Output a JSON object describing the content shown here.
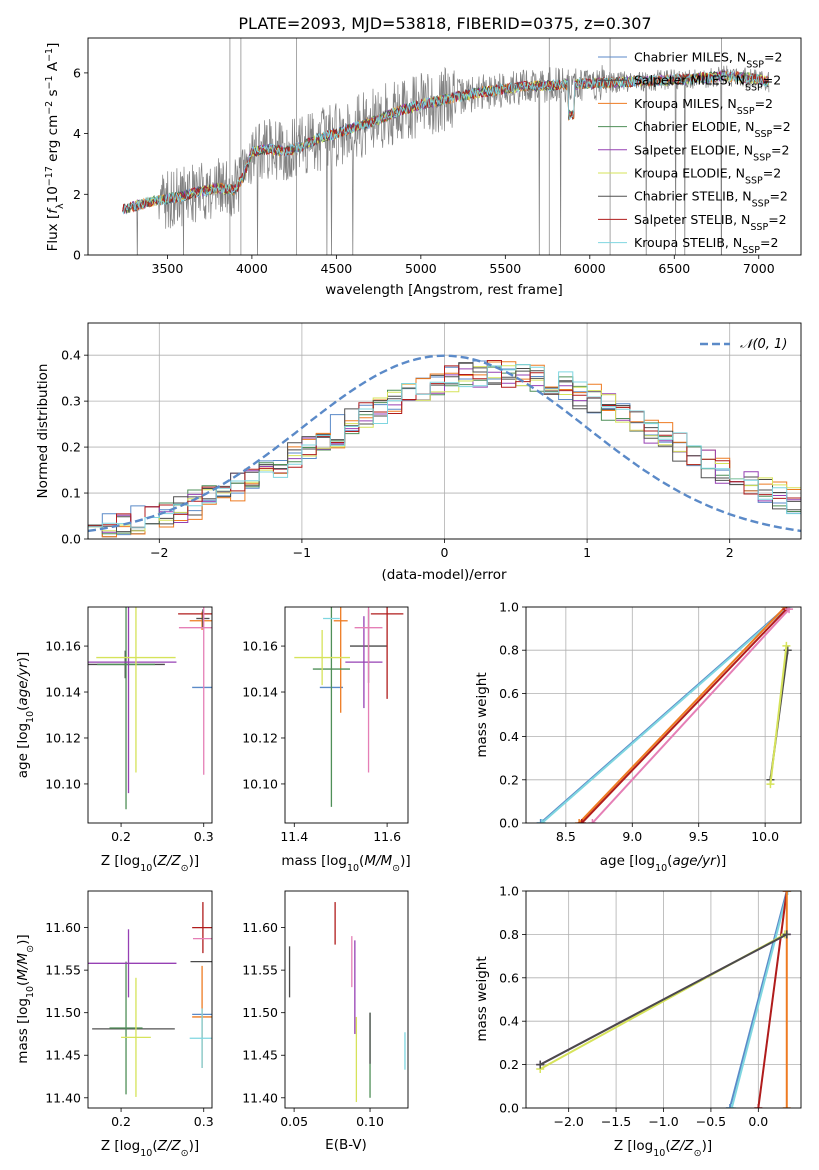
{
  "title": "PLATE=2093, MJD=53818, FIBERID=0375, z=0.307",
  "legend_ssp": [
    {
      "pre": "Chabrier MILES, N",
      "sub": "SSP",
      "post": "=2",
      "color": "#5b8ac8"
    },
    {
      "pre": "Salpeter MILES, N",
      "sub": "SSP",
      "post": "=2",
      "color": "#4b4b4b"
    },
    {
      "pre": "Kroupa MILES, N",
      "sub": "SSP",
      "post": "=2",
      "color": "#ee7b22"
    },
    {
      "pre": "Chabrier ELODIE, N",
      "sub": "SSP",
      "post": "=2",
      "color": "#4f8f58"
    },
    {
      "pre": "Salpeter ELODIE, N",
      "sub": "SSP",
      "post": "=2",
      "color": "#9640b4"
    },
    {
      "pre": "Kroupa ELODIE, N",
      "sub": "SSP",
      "post": "=2",
      "color": "#d6e35a"
    },
    {
      "pre": "Chabrier STELIB, N",
      "sub": "SSP",
      "post": "=2",
      "color": "#505050"
    },
    {
      "pre": "Salpeter STELIB, N",
      "sub": "SSP",
      "post": "=2",
      "color": "#b01c1c"
    },
    {
      "pre": "Kroupa STELIB, N",
      "sub": "SSP",
      "post": "=2",
      "color": "#7fd6e0"
    }
  ],
  "legend_normal": "𝒩(0, 1)",
  "chart_data": [
    {
      "id": "spectrum",
      "type": "line",
      "xlabel": "wavelength [Angstrom, rest frame]",
      "ylabel": "Flux [f_λ 10^-17 erg cm^-2 s^-1 A^-1]",
      "xlim": [
        3030,
        7250
      ],
      "ylim": [
        0,
        7.15
      ],
      "xticks": [
        3500,
        4000,
        4500,
        5000,
        5500,
        6000,
        6500,
        7000
      ],
      "yticks": [
        0,
        2,
        4,
        6
      ],
      "data_color": "#808080",
      "continuum": {
        "x": [
          3230,
          3300,
          3400,
          3500,
          3600,
          3700,
          3800,
          3900,
          3950,
          4000,
          4100,
          4200,
          4300,
          4400,
          4500,
          4600,
          4700,
          4800,
          4900,
          5000,
          5200,
          5400,
          5600,
          5800,
          6000,
          6200,
          6400,
          6600,
          6800,
          7000,
          7050
        ],
        "y": [
          1.5,
          1.6,
          1.75,
          1.85,
          1.95,
          2.1,
          2.2,
          2.15,
          2.6,
          3.4,
          3.5,
          3.4,
          3.6,
          3.85,
          4.0,
          4.2,
          4.35,
          4.6,
          4.8,
          4.95,
          5.2,
          5.4,
          5.55,
          5.6,
          5.65,
          5.7,
          5.75,
          5.8,
          5.9,
          5.8,
          5.7
        ]
      }
    },
    {
      "id": "residuals",
      "type": "histogram",
      "xlabel": "(data-model)/error",
      "ylabel": "Normed distribution",
      "xlim": [
        -2.5,
        2.5
      ],
      "ylim": [
        0,
        0.47
      ],
      "xticks": [
        -2,
        -1,
        0,
        1,
        2
      ],
      "yticks": [
        0.0,
        0.1,
        0.2,
        0.3,
        0.4
      ],
      "normal_curve": {
        "mean": 0,
        "sigma": 1,
        "color": "#5b8ac8"
      }
    },
    {
      "id": "age-vs-Z",
      "type": "errorbar",
      "xlabel": "Z [log10(Z/Z⊙)]",
      "ylabel": "age [log10(age/yr)]",
      "xlim": [
        0.16,
        0.31
      ],
      "ylim": [
        10.083,
        10.177
      ],
      "xticks": [
        0.2,
        0.3
      ],
      "yticks": [
        10.1,
        10.12,
        10.14,
        10.16
      ],
      "points": [
        {
          "x": 0.298,
          "y": 10.142,
          "xerr": 0.012,
          "yerr": 0.0,
          "color": "#5b8ac8"
        },
        {
          "x": 0.205,
          "y": 10.152,
          "xerr": 0.048,
          "yerr": 0.006,
          "color": "#4b4b4b"
        },
        {
          "x": 0.298,
          "y": 10.171,
          "xerr": 0.015,
          "yerr": 0.004,
          "color": "#ee7b22"
        },
        {
          "x": 0.206,
          "y": 10.152,
          "xerr": 0.035,
          "yerr": 0.063,
          "color": "#4f8f58"
        },
        {
          "x": 0.209,
          "y": 10.153,
          "xerr": 0.058,
          "yerr": 0.057,
          "color": "#9640b4"
        },
        {
          "x": 0.218,
          "y": 10.155,
          "xerr": 0.048,
          "yerr": 0.05,
          "color": "#d6e35a"
        },
        {
          "x": 0.299,
          "y": 10.172,
          "xerr": 0.008,
          "yerr": 0.004,
          "color": "#505050"
        },
        {
          "x": 0.299,
          "y": 10.174,
          "xerr": 0.03,
          "yerr": 0.0,
          "color": "#b01c1c"
        },
        {
          "x": 0.3,
          "y": 10.168,
          "xerr": 0.03,
          "yerr": 0.064,
          "color": "#e57fb6"
        }
      ]
    },
    {
      "id": "age-vs-mass",
      "type": "errorbar",
      "xlabel": "mass [log10(M/M⊙)]",
      "ylabel": "",
      "xlim": [
        11.38,
        11.645
      ],
      "ylim": [
        10.083,
        10.177
      ],
      "xticks": [
        11.4,
        11.6
      ],
      "yticks": [
        10.1,
        10.12,
        10.14,
        10.16
      ],
      "points": [
        {
          "x": 11.48,
          "y": 10.142,
          "xerr": 0.025,
          "yerr": 0.0,
          "color": "#5b8ac8"
        },
        {
          "x": 11.56,
          "y": 10.16,
          "xerr": 0.04,
          "yerr": 0.016,
          "color": "#4b4b4b"
        },
        {
          "x": 11.5,
          "y": 10.171,
          "xerr": 0.015,
          "yerr": 0.04,
          "color": "#ee7b22"
        },
        {
          "x": 11.48,
          "y": 10.15,
          "xerr": 0.04,
          "yerr": 0.06,
          "color": "#4f8f58"
        },
        {
          "x": 11.55,
          "y": 10.153,
          "xerr": 0.04,
          "yerr": 0.02,
          "color": "#9640b4"
        },
        {
          "x": 11.46,
          "y": 10.155,
          "xerr": 0.06,
          "yerr": 0.012,
          "color": "#d6e35a"
        },
        {
          "x": 11.48,
          "y": 10.172,
          "xerr": 0.018,
          "yerr": 0.0,
          "color": "#7fd6e0"
        },
        {
          "x": 11.6,
          "y": 10.174,
          "xerr": 0.035,
          "yerr": 0.037,
          "color": "#b01c1c"
        },
        {
          "x": 11.56,
          "y": 10.168,
          "xerr": 0.03,
          "yerr": 0.063,
          "color": "#e57fb6"
        }
      ]
    },
    {
      "id": "weight-vs-age",
      "type": "line",
      "xlabel": "age [log10(age/yr)]",
      "ylabel": "mass weight",
      "xlim": [
        8.2,
        10.27
      ],
      "ylim": [
        0,
        1
      ],
      "xticks": [
        8.5,
        9.0,
        9.5,
        10.0
      ],
      "yticks": [
        0.0,
        0.2,
        0.4,
        0.6,
        0.8,
        1.0
      ],
      "series": [
        {
          "x": [
            8.31,
            10.16
          ],
          "y": [
            0.0,
            1.0
          ],
          "color": "#5b8ac8"
        },
        {
          "x": [
            8.32,
            10.17
          ],
          "y": [
            0.0,
            1.0
          ],
          "color": "#7fd6e0"
        },
        {
          "x": [
            8.6,
            10.15
          ],
          "y": [
            0.0,
            1.0
          ],
          "color": "#ee7b22"
        },
        {
          "x": [
            8.62,
            10.16
          ],
          "y": [
            0.0,
            0.99
          ],
          "color": "#b01c1c"
        },
        {
          "x": [
            8.7,
            10.18
          ],
          "y": [
            0.0,
            0.99
          ],
          "color": "#e57fb6"
        },
        {
          "x": [
            10.04,
            10.17
          ],
          "y": [
            0.2,
            0.8
          ],
          "color": "#4b4b4b"
        },
        {
          "x": [
            10.04,
            10.16
          ],
          "y": [
            0.18,
            0.82
          ],
          "color": "#d6e35a"
        }
      ]
    },
    {
      "id": "mass-vs-Z",
      "type": "errorbar",
      "xlabel": "Z [log10(Z/Z⊙)]",
      "ylabel": "mass [log10(M/M⊙)]",
      "xlim": [
        0.16,
        0.31
      ],
      "ylim": [
        11.388,
        11.643
      ],
      "xticks": [
        0.2,
        0.3
      ],
      "yticks": [
        11.4,
        11.45,
        11.5,
        11.55,
        11.6
      ],
      "points": [
        {
          "x": 0.298,
          "y": 11.498,
          "xerr": 0.012,
          "yerr": 0.0,
          "color": "#5b8ac8"
        },
        {
          "x": 0.215,
          "y": 11.481,
          "xerr": 0.05,
          "yerr": 0.0,
          "color": "#505050"
        },
        {
          "x": 0.298,
          "y": 11.495,
          "xerr": 0.012,
          "yerr": 0.06,
          "color": "#ee7b22"
        },
        {
          "x": 0.206,
          "y": 11.482,
          "xerr": 0.02,
          "yerr": 0.078,
          "color": "#4f8f58"
        },
        {
          "x": 0.209,
          "y": 11.558,
          "xerr": 0.058,
          "yerr": 0.04,
          "color": "#9640b4"
        },
        {
          "x": 0.218,
          "y": 11.471,
          "xerr": 0.018,
          "yerr": 0.07,
          "color": "#d6e35a"
        },
        {
          "x": 0.299,
          "y": 11.56,
          "xerr": 0.015,
          "yerr": 0.0,
          "color": "#4b4b4b"
        },
        {
          "x": 0.299,
          "y": 11.6,
          "xerr": 0.013,
          "yerr": 0.03,
          "color": "#b01c1c"
        },
        {
          "x": 0.299,
          "y": 11.587,
          "xerr": 0.012,
          "yerr": 0.0,
          "color": "#e57fb6"
        },
        {
          "x": 0.298,
          "y": 11.47,
          "xerr": 0.015,
          "yerr": 0.035,
          "color": "#7fd6e0"
        }
      ]
    },
    {
      "id": "mass-vs-EBV",
      "type": "errorbar",
      "xlabel": "E(B-V)",
      "ylabel": "",
      "xlim": [
        0.044,
        0.125
      ],
      "ylim": [
        11.388,
        11.643
      ],
      "xticks": [
        0.05,
        0.1
      ],
      "yticks": [
        11.4,
        11.45,
        11.5,
        11.55,
        11.6
      ],
      "points": [
        {
          "x": 0.047,
          "y": 11.548,
          "xerr": 0.0,
          "yerr": 0.03,
          "color": "#4b4b4b"
        },
        {
          "x": 0.077,
          "y": 11.605,
          "xerr": 0.0,
          "yerr": 0.025,
          "color": "#b01c1c"
        },
        {
          "x": 0.088,
          "y": 11.56,
          "xerr": 0.0,
          "yerr": 0.03,
          "color": "#e57fb6"
        },
        {
          "x": 0.09,
          "y": 11.53,
          "xerr": 0.0,
          "yerr": 0.055,
          "color": "#9640b4"
        },
        {
          "x": 0.091,
          "y": 11.445,
          "xerr": 0.0,
          "yerr": 0.05,
          "color": "#d6e35a"
        },
        {
          "x": 0.1,
          "y": 11.45,
          "xerr": 0.0,
          "yerr": 0.05,
          "color": "#4f8f58"
        },
        {
          "x": 0.1,
          "y": 11.47,
          "xerr": 0.0,
          "yerr": 0.03,
          "color": "#505050"
        },
        {
          "x": 0.123,
          "y": 11.455,
          "xerr": 0.0,
          "yerr": 0.022,
          "color": "#7fd6e0"
        }
      ]
    },
    {
      "id": "weight-vs-Z",
      "type": "line",
      "xlabel": "Z [log10(Z/Z⊙)]",
      "ylabel": "mass weight",
      "xlim": [
        -2.45,
        0.45
      ],
      "ylim": [
        0,
        1
      ],
      "xticks": [
        -2.0,
        -1.5,
        -1.0,
        -0.5,
        0.0
      ],
      "yticks": [
        0.0,
        0.2,
        0.4,
        0.6,
        0.8,
        1.0
      ],
      "series": [
        {
          "x": [
            -0.3,
            0.3
          ],
          "y": [
            0.0,
            1.0
          ],
          "color": "#5b8ac8"
        },
        {
          "x": [
            -0.28,
            0.31
          ],
          "y": [
            0.0,
            1.0
          ],
          "color": "#7fd6e0"
        },
        {
          "x": [
            0.0,
            0.3
          ],
          "y": [
            0.0,
            1.0
          ],
          "color": "#b01c1c"
        },
        {
          "x": [
            0.3,
            0.3
          ],
          "y": [
            0.0,
            1.0
          ],
          "color": "#ee7b22"
        },
        {
          "x": [
            -2.3,
            0.3
          ],
          "y": [
            0.2,
            0.8
          ],
          "color": "#9640b4"
        },
        {
          "x": [
            -2.3,
            0.28
          ],
          "y": [
            0.18,
            0.8
          ],
          "color": "#d6e35a"
        },
        {
          "x": [
            -2.3,
            0.3
          ],
          "y": [
            0.2,
            0.8
          ],
          "color": "#4b4b4b"
        }
      ]
    }
  ]
}
